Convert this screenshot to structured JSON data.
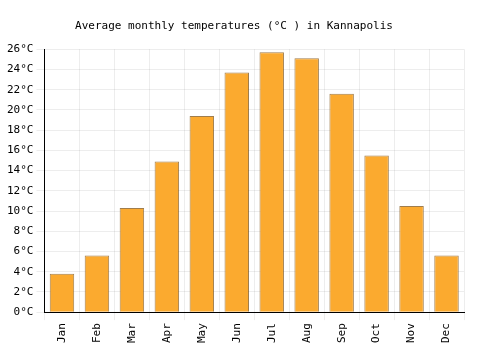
{
  "chart_data": {
    "type": "bar",
    "title": "Average monthly temperatures (°C ) in Kannapolis",
    "categories": [
      "Jan",
      "Feb",
      "Mar",
      "Apr",
      "May",
      "Jun",
      "Jul",
      "Aug",
      "Sep",
      "Oct",
      "Nov",
      "Dec"
    ],
    "values": [
      3.8,
      5.6,
      10.3,
      14.9,
      19.4,
      23.7,
      25.7,
      25.1,
      21.6,
      15.5,
      10.5,
      5.6
    ],
    "color": "#fbaa2f",
    "ylim": [
      0,
      26
    ],
    "yticks": [
      {
        "value": 0,
        "label": "0°C"
      },
      {
        "value": 2,
        "label": "2°C"
      },
      {
        "value": 4,
        "label": "4°C"
      },
      {
        "value": 6,
        "label": "6°C"
      },
      {
        "value": 8,
        "label": "8°C"
      },
      {
        "value": 10,
        "label": "10°C"
      },
      {
        "value": 12,
        "label": "12°C"
      },
      {
        "value": 14,
        "label": "14°C"
      },
      {
        "value": 16,
        "label": "16°C"
      },
      {
        "value": 18,
        "label": "18°C"
      },
      {
        "value": 20,
        "label": "20°C"
      },
      {
        "value": 22,
        "label": "22°C"
      },
      {
        "value": 24,
        "label": "24°C"
      },
      {
        "value": 26,
        "label": "26°C"
      }
    ],
    "grid": true
  }
}
